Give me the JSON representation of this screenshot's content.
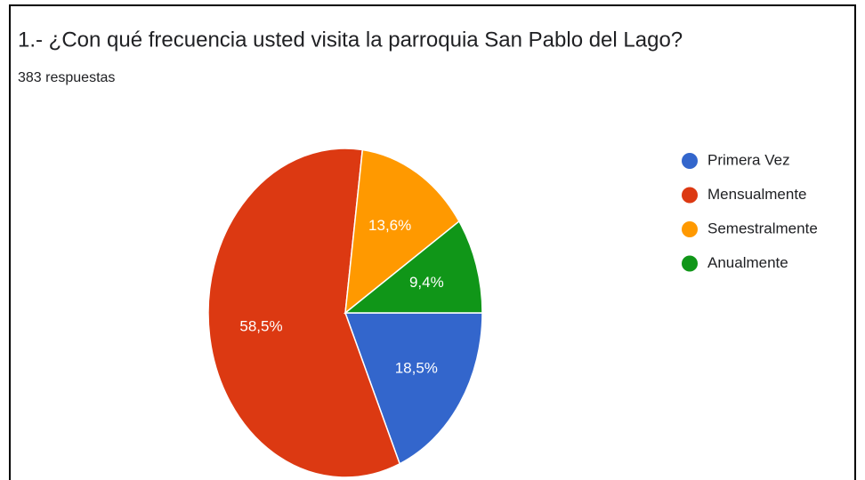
{
  "chart_data": {
    "type": "pie",
    "title": "1.- ¿Con  qué frecuencia usted visita la parroquia San Pablo del Lago?",
    "subtitle": "383 respuestas",
    "categories": [
      "Primera Vez",
      "Mensualmente",
      "Semestralmente",
      "Anualmente"
    ],
    "values": [
      18.5,
      58.5,
      13.6,
      9.4
    ],
    "value_labels": [
      "18,5%",
      "58,5%",
      "13,6%",
      "9,4%"
    ],
    "colors": [
      "#3366cc",
      "#dc3912",
      "#ff9900",
      "#109618"
    ],
    "legend": "right"
  }
}
